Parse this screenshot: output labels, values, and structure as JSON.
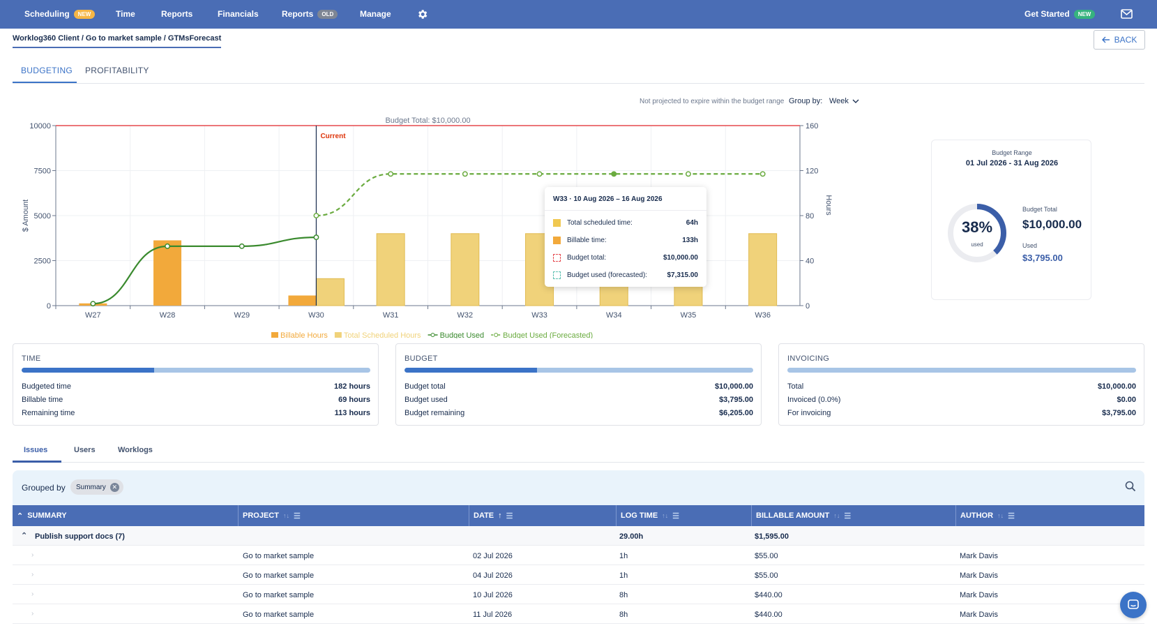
{
  "nav": {
    "items": [
      {
        "label": "Scheduling",
        "badge": "NEW"
      },
      {
        "label": "Time"
      },
      {
        "label": "Reports"
      },
      {
        "label": "Financials"
      },
      {
        "label": "Reports",
        "badge": "OLD"
      },
      {
        "label": "Manage"
      }
    ],
    "get_started": "Get Started",
    "get_started_badge": "NEW"
  },
  "breadcrumb": "Worklog360 Client / Go to market sample / GTMsForecast",
  "back_label": "BACK",
  "tabs": [
    "BUDGETING",
    "PROFITABILITY"
  ],
  "groupby": {
    "note": "Not projected to expire within the budget range",
    "label": "Group by:",
    "value": "Week"
  },
  "chart_data": {
    "type": "bar",
    "categories": [
      "W27",
      "W28",
      "W29",
      "W30",
      "W31",
      "W32",
      "W33",
      "W34",
      "W35",
      "W36"
    ],
    "ylabel": "$ Amount",
    "y2label": "Hours",
    "ylim": [
      0,
      10000
    ],
    "y2lim": [
      0,
      160
    ],
    "yticks": [
      0,
      2500,
      5000,
      7500,
      10000
    ],
    "y2ticks": [
      0,
      40,
      80,
      120,
      160
    ],
    "budget_line": {
      "label": "Budget Total: $10,000.00",
      "value": 10000,
      "color": "#e5484d"
    },
    "current_marker": {
      "label": "Current",
      "category": "W30"
    },
    "series": [
      {
        "name": "Billable Hours",
        "kind": "bar",
        "axis": "hours",
        "color": "#f2a93b",
        "values": [
          2,
          58,
          0,
          9,
          0,
          0,
          0,
          0,
          0,
          0
        ]
      },
      {
        "name": "Total Scheduled Hours",
        "kind": "bar",
        "axis": "hours",
        "color": "#f0d27a",
        "values": [
          0,
          0,
          0,
          24,
          64,
          64,
          64,
          64,
          64,
          64
        ]
      },
      {
        "name": "Budget Used",
        "kind": "line",
        "axis": "amount",
        "color": "#3a8a2e",
        "values": [
          110,
          3300,
          3300,
          3795,
          null,
          null,
          null,
          null,
          null,
          null
        ]
      },
      {
        "name": "Budget Used (Forecasted)",
        "kind": "line-dashed",
        "axis": "amount",
        "color": "#6aab3f",
        "values": [
          null,
          null,
          null,
          5000,
          7315,
          7315,
          7315,
          7315,
          7315,
          7315
        ]
      }
    ],
    "legend_position": "bottom"
  },
  "tooltip": {
    "title": "W33 · 10 Aug 2026 – 16 Aug 2026",
    "rows": [
      {
        "label": "Total scheduled time:",
        "value": "64h",
        "color": "#f0c850"
      },
      {
        "label": "Billable time:",
        "value": "133h",
        "color": "#f2a93b"
      },
      {
        "label": "Budget total:",
        "value": "$10,000.00",
        "color": "#e5484d"
      },
      {
        "label": "Budget used (forecasted):",
        "value": "$7,315.00",
        "color": "#5bbfb0"
      }
    ]
  },
  "budget_range": {
    "title": "Budget Range",
    "dates": "01 Jul 2026 - 31 Aug 2026",
    "percent_label": "38%",
    "percent": 0.38,
    "used_caption": "used",
    "total_label": "Budget Total",
    "total_value": "$10,000.00",
    "used_label": "Used",
    "used_value": "$3,795.00"
  },
  "cards": [
    {
      "title": "TIME",
      "progress": 0.38,
      "rows": [
        {
          "label": "Budgeted time",
          "value": "182 hours"
        },
        {
          "label": "Billable time",
          "value": "69 hours"
        },
        {
          "label": "Remaining time",
          "value": "113 hours"
        }
      ]
    },
    {
      "title": "BUDGET",
      "progress": 0.38,
      "rows": [
        {
          "label": "Budget total",
          "value": "$10,000.00"
        },
        {
          "label": "Budget used",
          "value": "$3,795.00"
        },
        {
          "label": "Budget remaining",
          "value": "$6,205.00"
        }
      ]
    },
    {
      "title": "INVOICING",
      "progress": 0,
      "rows": [
        {
          "label": "Total",
          "value": "$10,000.00"
        },
        {
          "label": "Invoiced (0.0%)",
          "value": "$0.00"
        },
        {
          "label": "For invoicing",
          "value": "$3,795.00"
        }
      ]
    }
  ],
  "subtabs": [
    "Issues",
    "Users",
    "Worklogs"
  ],
  "grouped": {
    "label": "Grouped by",
    "chip": "Summary"
  },
  "table": {
    "columns": [
      "SUMMARY",
      "PROJECT",
      "DATE",
      "LOG TIME",
      "BILLABLE AMOUNT",
      "AUTHOR"
    ],
    "group": {
      "summary": "Publish support docs (7)",
      "log_time": "29.00h",
      "amount": "$1,595.00"
    },
    "rows": [
      {
        "project": "Go to market sample",
        "date": "02 Jul 2026",
        "log_time": "1h",
        "amount": "$55.00",
        "author": "Mark Davis"
      },
      {
        "project": "Go to market sample",
        "date": "04 Jul 2026",
        "log_time": "1h",
        "amount": "$55.00",
        "author": "Mark Davis"
      },
      {
        "project": "Go to market sample",
        "date": "10 Jul 2026",
        "log_time": "8h",
        "amount": "$440.00",
        "author": "Mark Davis"
      },
      {
        "project": "Go to market sample",
        "date": "11 Jul 2026",
        "log_time": "8h",
        "amount": "$440.00",
        "author": "Mark Davis"
      }
    ]
  }
}
